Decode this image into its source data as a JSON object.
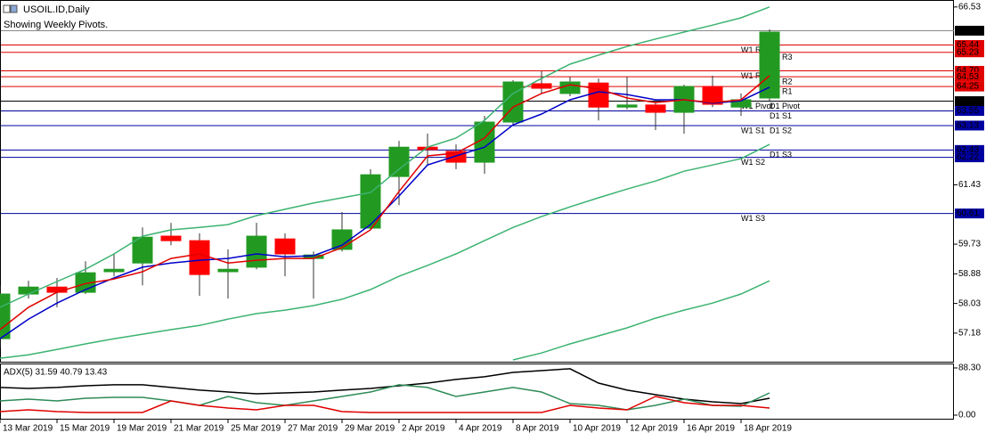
{
  "chart_data": [
    {
      "type": "candlestick",
      "title": "USOIL.ID,Daily",
      "subtitle": "Showing Weekly Pivots.",
      "categories": [
        "13 Mar 2019",
        null,
        "15 Mar 2019",
        null,
        "19 Mar 2019",
        null,
        "21 Mar 2019",
        null,
        "25 Mar 2019",
        null,
        "27 Mar 2019",
        null,
        "29 Mar 2019",
        null,
        "2 Apr 2019",
        null,
        "4 Apr 2019",
        null,
        "8 Apr 2019",
        null,
        "10 Apr 2019",
        null,
        "12 Apr 2019",
        null,
        "16 Apr 2019",
        null,
        "18 Apr 2019",
        null
      ],
      "open": [
        57.02,
        58.3,
        58.5,
        58.35,
        58.94,
        59.19,
        59.96,
        59.83,
        58.94,
        59.07,
        59.88,
        59.32,
        59.58,
        60.19,
        61.67,
        62.51,
        62.39,
        62.08,
        63.23,
        64.33,
        64.05,
        64.35,
        63.66,
        63.72,
        63.51,
        64.25,
        63.66,
        63.92
      ],
      "high": [
        58.55,
        58.68,
        58.76,
        59.24,
        59.45,
        60.21,
        60.34,
        60.04,
        59.58,
        60.34,
        60.04,
        59.52,
        60.65,
        61.88,
        62.69,
        62.9,
        62.59,
        63.41,
        64.43,
        64.69,
        64.53,
        64.48,
        64.53,
        63.87,
        64.3,
        64.56,
        64.05,
        65.89
      ],
      "low": [
        56.77,
        58.17,
        57.92,
        58.3,
        58.81,
        58.55,
        59.7,
        58.25,
        58.17,
        59.01,
        58.81,
        58.17,
        59.52,
        60.14,
        60.85,
        62.0,
        61.88,
        61.75,
        63.15,
        64.05,
        63.97,
        63.28,
        63.59,
        63.0,
        62.9,
        63.66,
        63.41,
        63.84
      ],
      "close": [
        58.3,
        58.5,
        58.35,
        58.91,
        59.01,
        59.93,
        59.83,
        58.86,
        59.01,
        59.96,
        59.45,
        59.42,
        60.14,
        61.72,
        62.51,
        62.44,
        62.08,
        63.23,
        64.38,
        64.2,
        64.38,
        63.66,
        63.72,
        63.51,
        64.25,
        63.74,
        63.87,
        65.81
      ],
      "up_color": "#229a22",
      "down_color": "#ff0000",
      "series": [
        {
          "color": "#3cb371",
          "values": [
            57.92,
            58.3,
            58.66,
            59.01,
            59.45,
            59.96,
            60.14,
            60.21,
            60.29,
            60.55,
            60.73,
            60.91,
            61.06,
            61.21,
            61.88,
            62.51,
            62.77,
            63.28,
            64.05,
            64.48,
            64.89,
            65.15,
            65.4,
            65.61,
            65.81,
            66.01,
            66.22,
            66.53
          ]
        },
        {
          "color": "#3cb371",
          "values": [
            56.46,
            56.56,
            56.71,
            56.87,
            57.02,
            57.15,
            57.28,
            57.4,
            57.58,
            57.74,
            57.84,
            57.97,
            58.15,
            58.43,
            58.81,
            59.12,
            59.45,
            59.83,
            60.21,
            60.52,
            60.8,
            61.06,
            61.31,
            61.54,
            61.82,
            62.0,
            62.18,
            62.59
          ]
        },
        {
          "color": "#3cb371",
          "values": [
            null,
            null,
            null,
            null,
            null,
            null,
            null,
            null,
            null,
            null,
            null,
            null,
            null,
            null,
            null,
            null,
            null,
            null,
            56.41,
            56.61,
            56.87,
            57.1,
            57.33,
            57.61,
            57.84,
            58.04,
            58.3,
            58.68
          ]
        },
        {
          "color": "#0000c8",
          "values": [
            57.02,
            57.58,
            58.04,
            58.43,
            58.76,
            59.07,
            59.19,
            59.27,
            59.32,
            59.45,
            59.37,
            59.4,
            59.7,
            60.29,
            61.11,
            62.0,
            62.26,
            62.51,
            63.15,
            63.46,
            63.87,
            64.1,
            64.02,
            63.87,
            63.87,
            63.77,
            63.84,
            64.23
          ]
        },
        {
          "color": "#e00000",
          "values": [
            57.28,
            57.92,
            58.35,
            58.6,
            58.73,
            58.94,
            59.32,
            59.45,
            59.19,
            59.27,
            59.32,
            59.32,
            59.63,
            60.14,
            61.24,
            62.26,
            62.34,
            62.77,
            63.66,
            64.05,
            64.3,
            64.18,
            63.92,
            63.79,
            63.87,
            63.79,
            63.87,
            64.56
          ]
        }
      ],
      "levels": [
        {
          "value": 65.44,
          "color": "#e00000",
          "labels": [
            "W1 R2"
          ]
        },
        {
          "value": 65.23,
          "color": "#e00000",
          "labels": [
            "D1 R3"
          ]
        },
        {
          "value": {
            "value": 64.7,
            "label": "64.70"
          },
          "color": "#e00000",
          "labels": [
            "W1 R1"
          ]
        },
        {
          "value": 64.53,
          "color": "#e00000",
          "labels": [
            "D1 R2"
          ]
        },
        {
          "value": 64.25,
          "color": "#e00000",
          "labels": [
            "D1 R1"
          ]
        },
        {
          "value": 63.83,
          "color": "#000000",
          "labels": [
            "W1 Pivot",
            "D1 Pivot"
          ]
        },
        {
          "value": 63.55,
          "color": "#0000a0",
          "labels": [
            "D1 S1"
          ]
        },
        {
          "value": 63.13,
          "color": "#0000a0",
          "labels": [
            "W1 S1",
            "D1 S2"
          ]
        },
        {
          "value": 62.43,
          "color": "#0000a0",
          "labels": [
            "D1 S3"
          ]
        },
        {
          "value": 62.22,
          "color": "#0000a0",
          "labels": [
            "W1 S2"
          ]
        },
        {
          "value": 60.61,
          "color": "#0000a0",
          "labels": [
            "W1 S3"
          ]
        }
      ],
      "bid": 65.85,
      "ylim": [
        56.36,
        66.73
      ],
      "yticks": [
        66.53,
        61.43,
        59.73,
        58.88,
        58.03,
        57.18
      ],
      "grid": false
    },
    {
      "type": "line",
      "title": "ADX(5) 31.59 40.79 13.43",
      "series": [
        {
          "color": "#000000",
          "values": [
            51.7,
            50,
            51.7,
            55,
            56.7,
            56.7,
            51.7,
            46.7,
            43.3,
            40,
            41.7,
            43.3,
            46.7,
            50,
            55,
            60,
            66.7,
            71.7,
            80,
            83.3,
            86.7,
            60,
            46.7,
            38.3,
            30,
            25,
            21.7,
            31.7
          ]
        },
        {
          "color": "#2e8b57",
          "values": [
            26.7,
            30,
            26.7,
            31.7,
            33.3,
            33.3,
            26.7,
            18.3,
            35,
            23.3,
            18.3,
            26.7,
            35,
            43.3,
            56.7,
            51.7,
            35,
            43.3,
            51.7,
            43.3,
            21.7,
            18.3,
            10,
            18.3,
            30,
            18.3,
            16.7,
            41.7
          ]
        },
        {
          "color": "#e00000",
          "values": [
            6.7,
            10,
            6.7,
            5,
            5,
            5,
            26.7,
            18.3,
            13.3,
            10,
            18.3,
            18.3,
            6.7,
            5,
            5,
            5,
            5,
            5,
            5,
            5,
            18.3,
            13.3,
            10,
            35,
            23.3,
            18.3,
            18.3,
            13.3
          ]
        }
      ],
      "ylim": [
        -6.7,
        96.6
      ],
      "yticks": [
        {
          "value": 88.3,
          "label": "88.30"
        },
        {
          "value": 0,
          "label": "0.00"
        }
      ],
      "grid": false
    }
  ]
}
